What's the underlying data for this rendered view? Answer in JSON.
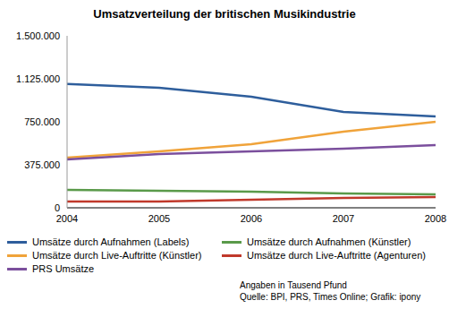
{
  "chart_data": {
    "type": "line",
    "title": "Umsatzverteilung der britischen Musikindustrie",
    "x": [
      2004,
      2005,
      2006,
      2007,
      2008
    ],
    "series": [
      {
        "name": "Umsätze durch Aufnahmen (Labels)",
        "color": "#2e5e9c",
        "values": [
          1080000,
          1047000,
          969000,
          836000,
          797000
        ]
      },
      {
        "name": "Umsätze durch Aufnahmen (Künstler)",
        "color": "#5a9a4a",
        "values": [
          156000,
          148000,
          141000,
          125000,
          117000
        ]
      },
      {
        "name": "Umsätze durch Live-Auftritte (Künstler)",
        "color": "#f0a33a",
        "values": [
          437000,
          492000,
          555000,
          664000,
          750000
        ]
      },
      {
        "name": "Umsätze durch Live-Auftritte (Agenturen)",
        "color": "#c0392b",
        "values": [
          55000,
          55000,
          70000,
          86000,
          94000
        ]
      },
      {
        "name": "PRS Umsätze",
        "color": "#7b4f9d",
        "values": [
          422000,
          469000,
          492000,
          516000,
          547000
        ]
      }
    ],
    "xlim": [
      2004,
      2008
    ],
    "xticks": [
      2004,
      2005,
      2006,
      2007,
      2008
    ],
    "ylim": [
      0,
      1500000
    ],
    "yticks": [
      0,
      {
        "value": 375000,
        "label": "375.000"
      },
      {
        "value": 750000,
        "label": "750.000"
      },
      {
        "value": 1125000,
        "label": "1.125.000"
      },
      {
        "value": 1500000,
        "label": "1.500.000"
      }
    ],
    "grid": false,
    "legend": "bottom",
    "annotations": [
      "Angaben in Tausend Pfund",
      "Quelle: BPI, PRS, Times Online; Grafik: ipony"
    ]
  }
}
